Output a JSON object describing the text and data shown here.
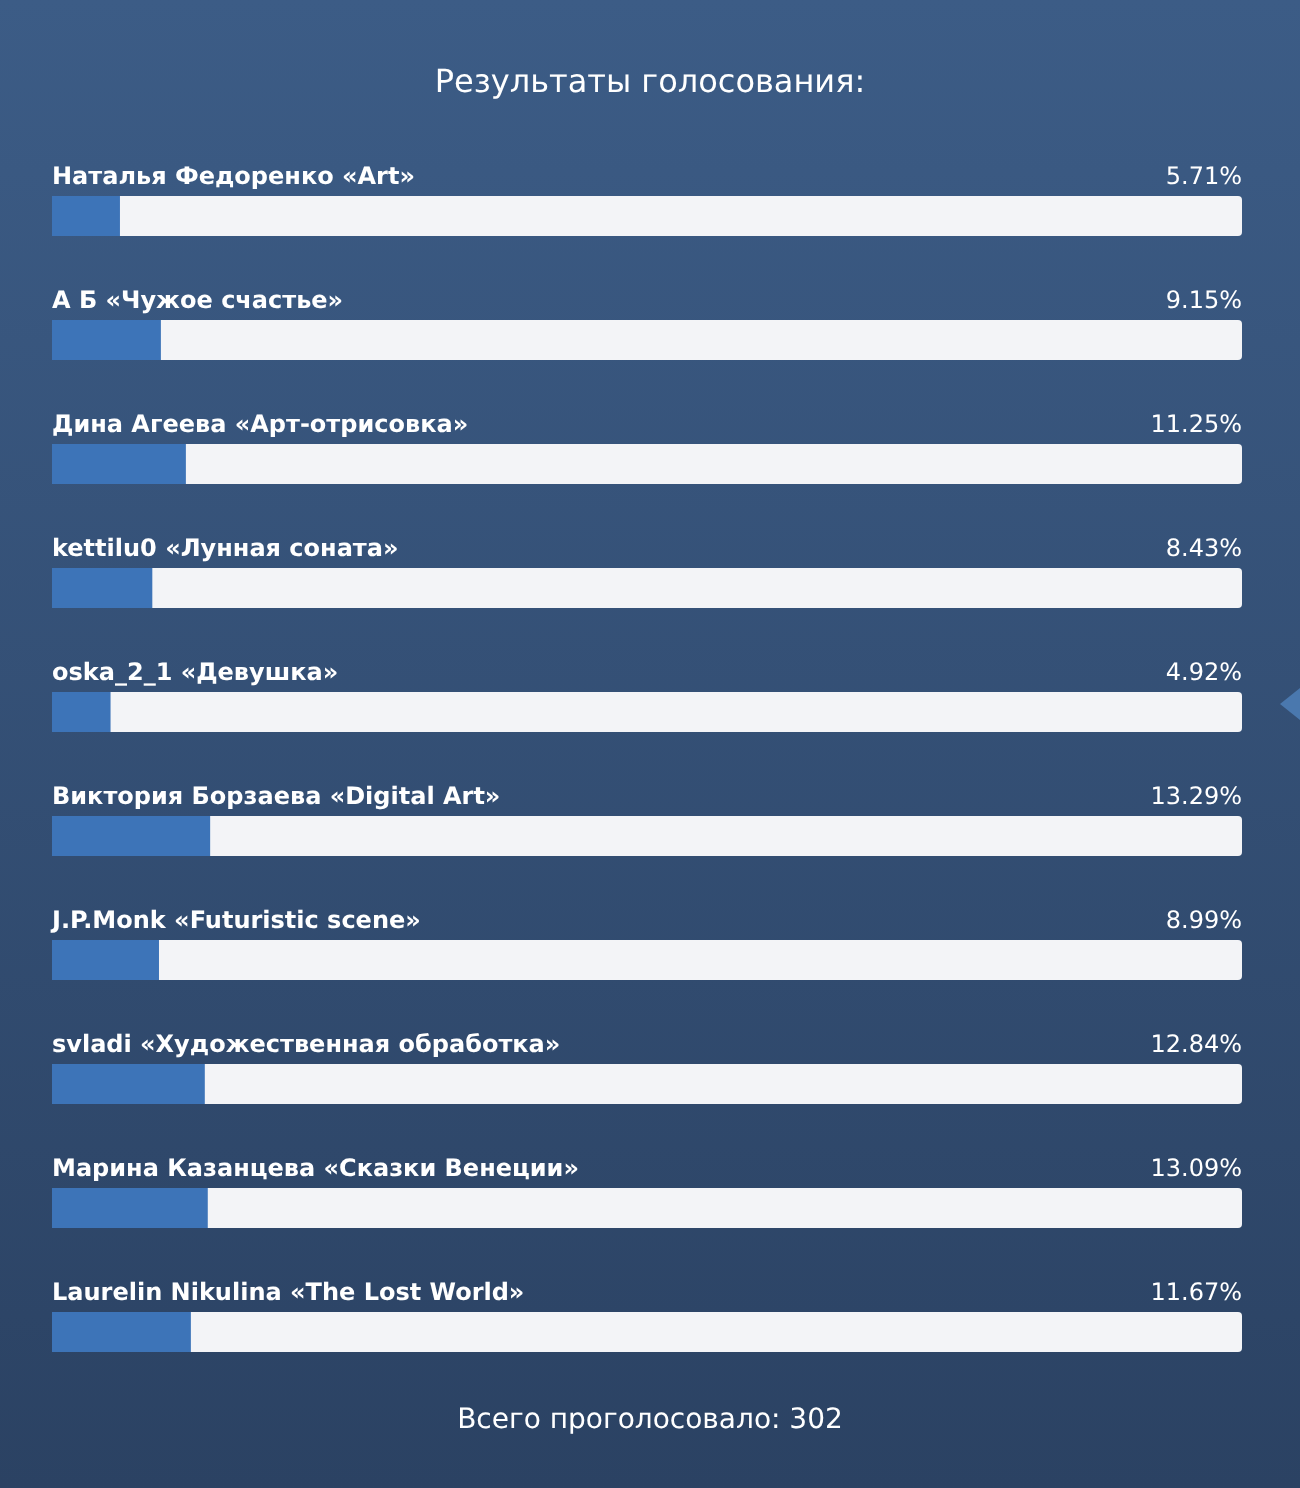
{
  "chart_data": {
    "type": "bar",
    "orientation": "horizontal",
    "title": "Результаты голосования:",
    "categories": [
      "Наталья Федоренко «Art»",
      "А Б «Чужое счастье»",
      "Дина Агеева «Арт-отрисовка»",
      "kettilu0 «Лунная соната»",
      "oska_2_1 «Девушка»",
      "Виктория Борзаева «Digital Art»",
      "J.P.Monk «Futuristic scene»",
      "svladi «Художественная обработка»",
      "Марина Казанцева «Сказки Венеции»",
      "Laurelin Nikulina «The Lost World»"
    ],
    "values": [
      5.71,
      9.15,
      11.25,
      8.43,
      4.92,
      13.29,
      8.99,
      12.84,
      13.09,
      11.67
    ],
    "value_labels": [
      "5.71%",
      "9.15%",
      "11.25%",
      "8.43%",
      "4.92%",
      "13.29%",
      "8.99%",
      "12.84%",
      "13.09%",
      "11.67%"
    ],
    "color": "#3d74b8",
    "xlim": [
      0,
      100
    ],
    "annotations": [
      "Всего проголосовало: 302"
    ]
  }
}
